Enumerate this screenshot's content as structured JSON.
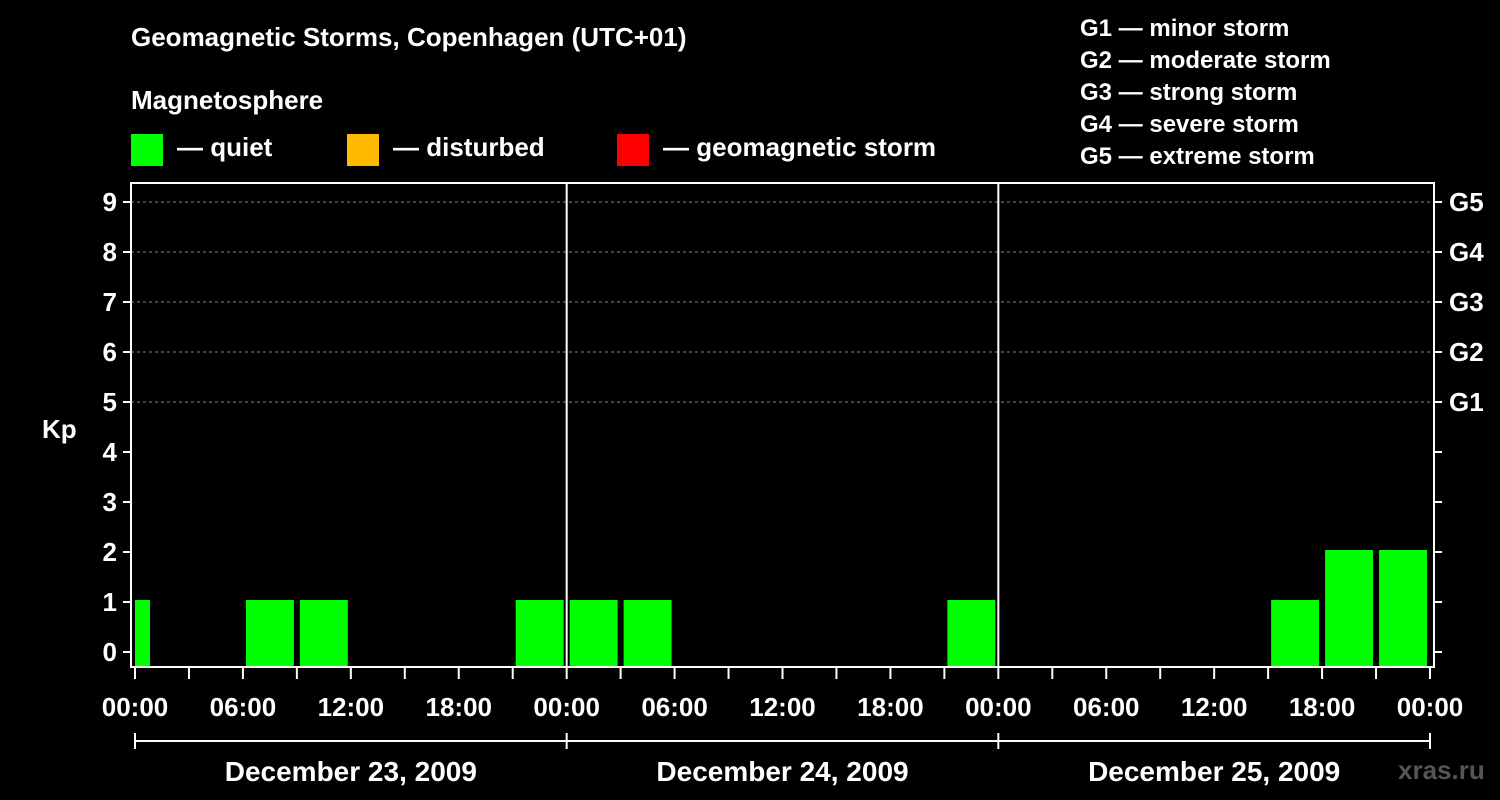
{
  "chart_data": {
    "type": "bar",
    "title": "Geomagnetic Storms, Copenhagen (UTC+01)",
    "subtitle": "Magnetosphere",
    "ylabel": "Kp",
    "ylim": [
      0,
      9
    ],
    "yticks": [
      "0",
      "1",
      "2",
      "3",
      "4",
      "5",
      "6",
      "7",
      "8",
      "9"
    ],
    "right_ticks": [
      {
        "kp": 5,
        "label": "G1"
      },
      {
        "kp": 6,
        "label": "G2"
      },
      {
        "kp": 7,
        "label": "G3"
      },
      {
        "kp": 8,
        "label": "G4"
      },
      {
        "kp": 9,
        "label": "G5"
      }
    ],
    "xtick_labels": [
      "00:00",
      "06:00",
      "12:00",
      "18:00",
      "00:00",
      "06:00",
      "12:00",
      "18:00",
      "00:00",
      "06:00",
      "12:00",
      "18:00",
      "00:00"
    ],
    "days": [
      "December 23, 2009",
      "December 24, 2009",
      "December 25, 2009"
    ],
    "interval_hours": 3,
    "values": [
      1,
      0,
      1,
      1,
      0,
      0,
      0,
      1,
      1,
      1,
      0,
      0,
      0,
      0,
      0,
      1,
      0,
      0,
      0,
      0,
      0,
      1,
      2,
      2
    ],
    "colors": {
      "quiet": "#00ff00",
      "disturbed": "#ffb900",
      "storm": "#ff0000"
    },
    "legend": [
      {
        "label": "— quiet",
        "color": "#00ff00"
      },
      {
        "label": "— disturbed",
        "color": "#ffb900"
      },
      {
        "label": "— geomagnetic storm",
        "color": "#ff0000"
      }
    ],
    "storm_scale": [
      "G1 — minor storm",
      "G2 — moderate storm",
      "G3 — strong storm",
      "G4 — severe storm",
      "G5 — extreme storm"
    ]
  },
  "watermark": "xras.ru"
}
